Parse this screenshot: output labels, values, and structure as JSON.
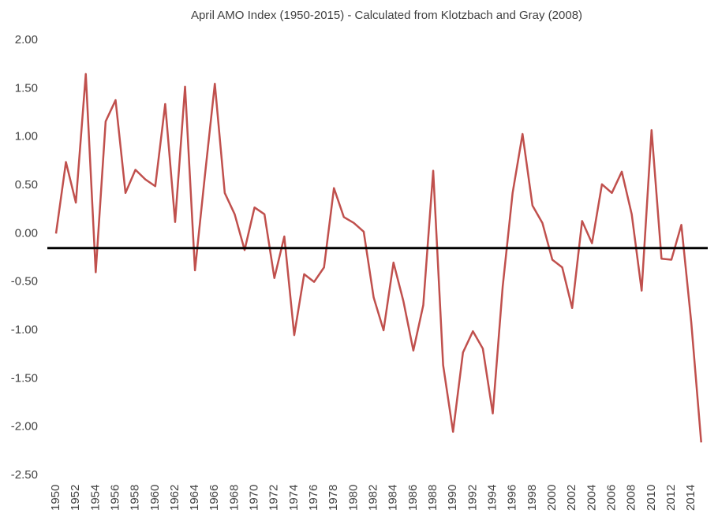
{
  "chart_data": {
    "type": "line",
    "title": "April AMO Index (1950-2015) - Calculated from Klotzbach and Gray (2008)",
    "categories": [
      "1950",
      null,
      "1952",
      null,
      "1954",
      null,
      "1956",
      null,
      "1958",
      null,
      "1960",
      null,
      "1962",
      null,
      "1964",
      null,
      "1966",
      null,
      "1968",
      null,
      "1970",
      null,
      "1972",
      null,
      "1974",
      null,
      "1976",
      null,
      "1978",
      null,
      "1980",
      null,
      "1982",
      null,
      "1984",
      null,
      "1986",
      null,
      "1988",
      null,
      "1990",
      null,
      "1992",
      null,
      "1994",
      null,
      "1996",
      null,
      "1998",
      null,
      "2000",
      null,
      "2002",
      null,
      "2004",
      null,
      "2006",
      null,
      "2008",
      null,
      "2010",
      null,
      "2012",
      null,
      "2014",
      null
    ],
    "series": [
      {
        "color": "#c0504d",
        "values": [
          0.0,
          0.74,
          0.32,
          1.65,
          -0.4,
          1.16,
          1.38,
          0.42,
          0.66,
          0.56,
          0.49,
          1.34,
          0.12,
          1.52,
          -0.38,
          0.6,
          1.55,
          0.42,
          0.2,
          -0.17,
          0.27,
          0.2,
          -0.46,
          -0.03,
          -1.05,
          -0.42,
          -0.5,
          -0.35,
          0.47,
          0.17,
          0.11,
          0.02,
          -0.66,
          -1.0,
          -0.3,
          -0.7,
          -1.21,
          -0.74,
          0.65,
          -1.36,
          -2.05,
          -1.23,
          -1.01,
          -1.19,
          -1.86,
          -0.55,
          0.42,
          1.03,
          0.29,
          0.11,
          -0.27,
          -0.35,
          -0.77,
          0.13,
          -0.1,
          0.51,
          0.42,
          0.64,
          0.2,
          -0.59,
          1.07,
          -0.26,
          -0.27,
          0.09,
          -0.92,
          -2.16
        ]
      }
    ],
    "reference_line": {
      "value": -0.15,
      "color": "#000000"
    },
    "ylim": [
      -2.5,
      2
    ],
    "yticks": [
      {
        "value": -2.5,
        "label": "-2.50"
      },
      {
        "value": -2,
        "label": "-2.00"
      },
      {
        "value": -1.5,
        "label": "-1.50"
      },
      {
        "value": -1,
        "label": "-1.00"
      },
      {
        "value": -0.5,
        "label": "-0.50"
      },
      {
        "value": 0,
        "label": "0.00"
      },
      {
        "value": 0.5,
        "label": "0.50"
      },
      {
        "value": 1,
        "label": "1.00"
      },
      {
        "value": 1.5,
        "label": "1.50"
      },
      {
        "value": 2,
        "label": "2.00"
      }
    ],
    "grid": false
  }
}
